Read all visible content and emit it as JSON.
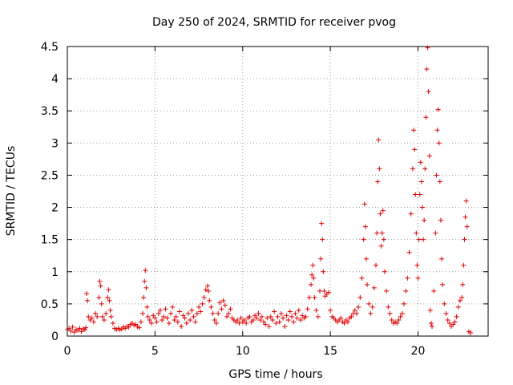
{
  "chart_data": {
    "type": "scatter",
    "title": "Day 250 of 2024, SRMTID for receiver pvog",
    "xlabel": "GPS time / hours",
    "ylabel": "SRMTID / TECUs",
    "xlim": [
      0,
      24
    ],
    "ylim": [
      0,
      4.5
    ],
    "xticks": [
      0,
      5,
      10,
      15,
      20
    ],
    "yticks": [
      0,
      0.5,
      1,
      1.5,
      2,
      2.5,
      3,
      3.5,
      4,
      4.5
    ],
    "xtick_labels": [
      "0",
      "5",
      "10",
      "15",
      "20"
    ],
    "ytick_labels": [
      "0",
      "0.5",
      "1",
      "1.5",
      "2",
      "2.5",
      "3",
      "3.5",
      "4",
      "4.5"
    ],
    "grid": true,
    "marker": "+",
    "color": "#e00000",
    "series": [
      {
        "name": "SRMTID",
        "points": [
          [
            0.0,
            0.1
          ],
          [
            0.1,
            0.12
          ],
          [
            0.2,
            0.08
          ],
          [
            0.3,
            0.14
          ],
          [
            0.4,
            0.06
          ],
          [
            0.5,
            0.1
          ],
          [
            0.6,
            0.09
          ],
          [
            0.7,
            0.12
          ],
          [
            0.8,
            0.07
          ],
          [
            0.9,
            0.11
          ],
          [
            1.0,
            0.1
          ],
          [
            1.05,
            0.13
          ],
          [
            1.1,
            0.66
          ],
          [
            1.15,
            0.55
          ],
          [
            1.2,
            0.3
          ],
          [
            1.3,
            0.25
          ],
          [
            1.4,
            0.28
          ],
          [
            1.5,
            0.22
          ],
          [
            1.6,
            0.35
          ],
          [
            1.7,
            0.3
          ],
          [
            1.8,
            0.6
          ],
          [
            1.85,
            0.85
          ],
          [
            1.9,
            0.78
          ],
          [
            1.95,
            0.5
          ],
          [
            2.0,
            0.3
          ],
          [
            2.1,
            0.25
          ],
          [
            2.2,
            0.35
          ],
          [
            2.3,
            0.6
          ],
          [
            2.35,
            0.72
          ],
          [
            2.4,
            0.55
          ],
          [
            2.45,
            0.4
          ],
          [
            2.5,
            0.3
          ],
          [
            2.6,
            0.2
          ],
          [
            2.7,
            0.12
          ],
          [
            2.8,
            0.1
          ],
          [
            2.9,
            0.12
          ],
          [
            3.0,
            0.1
          ],
          [
            3.1,
            0.11
          ],
          [
            3.2,
            0.14
          ],
          [
            3.3,
            0.12
          ],
          [
            3.4,
            0.15
          ],
          [
            3.5,
            0.14
          ],
          [
            3.6,
            0.18
          ],
          [
            3.7,
            0.2
          ],
          [
            3.8,
            0.17
          ],
          [
            3.9,
            0.18
          ],
          [
            4.0,
            0.15
          ],
          [
            4.1,
            0.13
          ],
          [
            4.2,
            0.22
          ],
          [
            4.3,
            0.35
          ],
          [
            4.35,
            0.6
          ],
          [
            4.4,
            0.85
          ],
          [
            4.45,
            1.02
          ],
          [
            4.5,
            0.75
          ],
          [
            4.55,
            0.45
          ],
          [
            4.6,
            0.3
          ],
          [
            4.7,
            0.25
          ],
          [
            4.8,
            0.2
          ],
          [
            4.9,
            0.32
          ],
          [
            5.0,
            0.28
          ],
          [
            5.1,
            0.22
          ],
          [
            5.2,
            0.35
          ],
          [
            5.3,
            0.4
          ],
          [
            5.4,
            0.25
          ],
          [
            5.5,
            0.3
          ],
          [
            5.6,
            0.42
          ],
          [
            5.7,
            0.28
          ],
          [
            5.8,
            0.2
          ],
          [
            5.9,
            0.35
          ],
          [
            6.0,
            0.45
          ],
          [
            6.1,
            0.25
          ],
          [
            6.2,
            0.3
          ],
          [
            6.3,
            0.22
          ],
          [
            6.4,
            0.38
          ],
          [
            6.5,
            0.15
          ],
          [
            6.6,
            0.32
          ],
          [
            6.7,
            0.28
          ],
          [
            6.8,
            0.2
          ],
          [
            6.9,
            0.35
          ],
          [
            7.0,
            0.25
          ],
          [
            7.1,
            0.4
          ],
          [
            7.2,
            0.3
          ],
          [
            7.3,
            0.22
          ],
          [
            7.4,
            0.35
          ],
          [
            7.5,
            0.45
          ],
          [
            7.6,
            0.38
          ],
          [
            7.7,
            0.5
          ],
          [
            7.8,
            0.6
          ],
          [
            7.9,
            0.72
          ],
          [
            8.0,
            0.78
          ],
          [
            8.05,
            0.7
          ],
          [
            8.1,
            0.55
          ],
          [
            8.2,
            0.45
          ],
          [
            8.3,
            0.35
          ],
          [
            8.4,
            0.25
          ],
          [
            8.5,
            0.2
          ],
          [
            8.6,
            0.35
          ],
          [
            8.7,
            0.52
          ],
          [
            8.8,
            0.42
          ],
          [
            8.9,
            0.55
          ],
          [
            9.0,
            0.48
          ],
          [
            9.1,
            0.3
          ],
          [
            9.2,
            0.35
          ],
          [
            9.3,
            0.42
          ],
          [
            9.4,
            0.28
          ],
          [
            9.5,
            0.25
          ],
          [
            9.6,
            0.22
          ],
          [
            9.7,
            0.25
          ],
          [
            9.8,
            0.2
          ],
          [
            9.9,
            0.28
          ],
          [
            10.0,
            0.22
          ],
          [
            10.1,
            0.25
          ],
          [
            10.2,
            0.2
          ],
          [
            10.3,
            0.28
          ],
          [
            10.4,
            0.3
          ],
          [
            10.5,
            0.22
          ],
          [
            10.6,
            0.25
          ],
          [
            10.7,
            0.32
          ],
          [
            10.8,
            0.28
          ],
          [
            10.9,
            0.35
          ],
          [
            11.0,
            0.25
          ],
          [
            11.1,
            0.3
          ],
          [
            11.2,
            0.22
          ],
          [
            11.3,
            0.18
          ],
          [
            11.4,
            0.28
          ],
          [
            11.5,
            0.15
          ],
          [
            11.6,
            0.3
          ],
          [
            11.7,
            0.25
          ],
          [
            11.8,
            0.38
          ],
          [
            11.9,
            0.2
          ],
          [
            12.0,
            0.3
          ],
          [
            12.1,
            0.22
          ],
          [
            12.2,
            0.35
          ],
          [
            12.3,
            0.28
          ],
          [
            12.4,
            0.15
          ],
          [
            12.5,
            0.32
          ],
          [
            12.6,
            0.25
          ],
          [
            12.7,
            0.38
          ],
          [
            12.8,
            0.3
          ],
          [
            12.9,
            0.22
          ],
          [
            13.0,
            0.35
          ],
          [
            13.1,
            0.28
          ],
          [
            13.2,
            0.4
          ],
          [
            13.3,
            0.25
          ],
          [
            13.4,
            0.32
          ],
          [
            13.5,
            0.28
          ],
          [
            13.6,
            0.3
          ],
          [
            13.7,
            0.42
          ],
          [
            13.8,
            0.6
          ],
          [
            13.9,
            0.8
          ],
          [
            13.95,
            0.95
          ],
          [
            14.0,
            1.1
          ],
          [
            14.05,
            0.9
          ],
          [
            14.1,
            0.6
          ],
          [
            14.2,
            0.4
          ],
          [
            14.3,
            0.3
          ],
          [
            14.4,
            0.7
          ],
          [
            14.45,
            1.2
          ],
          [
            14.5,
            1.75
          ],
          [
            14.55,
            1.5
          ],
          [
            14.6,
            1.0
          ],
          [
            14.65,
            0.7
          ],
          [
            14.7,
            0.62
          ],
          [
            14.8,
            0.65
          ],
          [
            14.9,
            0.68
          ],
          [
            15.0,
            0.4
          ],
          [
            15.1,
            0.3
          ],
          [
            15.2,
            0.28
          ],
          [
            15.3,
            0.25
          ],
          [
            15.4,
            0.22
          ],
          [
            15.5,
            0.25
          ],
          [
            15.6,
            0.28
          ],
          [
            15.7,
            0.22
          ],
          [
            15.8,
            0.2
          ],
          [
            15.9,
            0.25
          ],
          [
            16.0,
            0.22
          ],
          [
            16.1,
            0.28
          ],
          [
            16.2,
            0.3
          ],
          [
            16.3,
            0.35
          ],
          [
            16.4,
            0.4
          ],
          [
            16.5,
            0.35
          ],
          [
            16.6,
            0.45
          ],
          [
            16.7,
            0.6
          ],
          [
            16.8,
            0.9
          ],
          [
            16.9,
            1.5
          ],
          [
            16.95,
            2.05
          ],
          [
            17.0,
            1.7
          ],
          [
            17.05,
            1.2
          ],
          [
            17.1,
            0.8
          ],
          [
            17.2,
            0.5
          ],
          [
            17.3,
            0.35
          ],
          [
            17.4,
            0.45
          ],
          [
            17.5,
            0.75
          ],
          [
            17.6,
            1.1
          ],
          [
            17.65,
            1.6
          ],
          [
            17.7,
            2.4
          ],
          [
            17.75,
            3.05
          ],
          [
            17.8,
            2.6
          ],
          [
            17.85,
            1.9
          ],
          [
            17.9,
            1.4
          ],
          [
            17.95,
            1.6
          ],
          [
            18.0,
            1.95
          ],
          [
            18.05,
            1.5
          ],
          [
            18.1,
            1.0
          ],
          [
            18.2,
            0.7
          ],
          [
            18.3,
            0.45
          ],
          [
            18.4,
            0.35
          ],
          [
            18.5,
            0.25
          ],
          [
            18.6,
            0.2
          ],
          [
            18.7,
            0.22
          ],
          [
            18.8,
            0.2
          ],
          [
            18.9,
            0.25
          ],
          [
            19.0,
            0.3
          ],
          [
            19.1,
            0.35
          ],
          [
            19.2,
            0.5
          ],
          [
            19.3,
            0.7
          ],
          [
            19.4,
            0.9
          ],
          [
            19.5,
            1.3
          ],
          [
            19.6,
            1.9
          ],
          [
            19.7,
            2.6
          ],
          [
            19.75,
            3.2
          ],
          [
            19.8,
            2.9
          ],
          [
            19.85,
            2.2
          ],
          [
            19.9,
            1.6
          ],
          [
            19.95,
            1.1
          ],
          [
            20.0,
            0.9
          ],
          [
            20.05,
            1.5
          ],
          [
            20.1,
            2.2
          ],
          [
            20.15,
            2.7
          ],
          [
            20.2,
            2.4
          ],
          [
            20.25,
            2.0
          ],
          [
            20.3,
            1.5
          ],
          [
            20.35,
            1.8
          ],
          [
            20.4,
            2.6
          ],
          [
            20.45,
            3.4
          ],
          [
            20.5,
            4.15
          ],
          [
            20.55,
            4.48
          ],
          [
            20.6,
            3.8
          ],
          [
            20.65,
            2.8
          ],
          [
            20.7,
            0.4
          ],
          [
            20.75,
            0.2
          ],
          [
            20.8,
            0.15
          ],
          [
            20.9,
            0.7
          ],
          [
            21.0,
            1.6
          ],
          [
            21.05,
            2.5
          ],
          [
            21.1,
            3.2
          ],
          [
            21.15,
            3.52
          ],
          [
            21.2,
            3.0
          ],
          [
            21.25,
            2.4
          ],
          [
            21.3,
            1.8
          ],
          [
            21.35,
            1.2
          ],
          [
            21.4,
            0.8
          ],
          [
            21.5,
            0.5
          ],
          [
            21.6,
            0.35
          ],
          [
            21.7,
            0.25
          ],
          [
            21.8,
            0.2
          ],
          [
            21.9,
            0.15
          ],
          [
            22.0,
            0.18
          ],
          [
            22.1,
            0.22
          ],
          [
            22.2,
            0.3
          ],
          [
            22.3,
            0.45
          ],
          [
            22.4,
            0.55
          ],
          [
            22.5,
            0.6
          ],
          [
            22.55,
            0.8
          ],
          [
            22.6,
            1.1
          ],
          [
            22.65,
            1.5
          ],
          [
            22.7,
            1.85
          ],
          [
            22.75,
            2.1
          ],
          [
            22.8,
            1.7
          ],
          [
            22.9,
            0.07
          ],
          [
            23.0,
            0.05
          ]
        ]
      }
    ]
  }
}
